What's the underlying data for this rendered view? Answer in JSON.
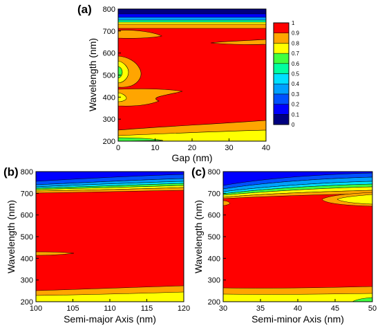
{
  "figure": {
    "colorbar": {
      "levels": [
        0,
        0.1,
        0.2,
        0.3,
        0.4,
        0.5,
        0.6,
        0.7,
        0.8,
        0.9,
        1
      ],
      "tick_labels": [
        "1",
        "0.9",
        "0.8",
        "0.7",
        "0.6",
        "0.5",
        "0.4",
        "0.3",
        "0.2",
        "0.1",
        "0"
      ],
      "colors": [
        "#000080",
        "#0000ff",
        "#0050ff",
        "#00a0ff",
        "#00e0ff",
        "#00ffa0",
        "#40ff40",
        "#ffff00",
        "#ffa500",
        "#ff0000"
      ]
    }
  },
  "chart_data": [
    {
      "type": "heatmap",
      "panel_label": "(a)",
      "xlabel": "Gap (nm)",
      "ylabel": "Wavelength (nm)",
      "xlim": [
        0,
        40
      ],
      "ylim": [
        200,
        800
      ],
      "x_ticks": [
        "0",
        "10",
        "20",
        "30",
        "40"
      ],
      "y_ticks": [
        "200",
        "300",
        "400",
        "500",
        "600",
        "700",
        "800"
      ],
      "bands_uniform_in_x": [
        {
          "wavelength_range": [
            780,
            800
          ],
          "value_range": [
            0,
            0.2
          ]
        },
        {
          "wavelength_range": [
            755,
            780
          ],
          "value_range": [
            0.2,
            0.5
          ]
        },
        {
          "wavelength_range": [
            740,
            755
          ],
          "value_range": [
            0.5,
            0.8
          ]
        },
        {
          "wavelength_range": [
            720,
            740
          ],
          "value_range": [
            0.8,
            0.9
          ]
        },
        {
          "wavelength_range": [
            260,
            720
          ],
          "value_range": [
            0.9,
            1.0
          ]
        },
        {
          "wavelength_range": [
            200,
            260
          ],
          "value_range": [
            0.7,
            0.9
          ]
        }
      ],
      "local_features": [
        {
          "x_range": [
            0,
            12
          ],
          "wavelength_range": [
            660,
            690
          ],
          "value_range": [
            0.8,
            0.9
          ]
        },
        {
          "x_range": [
            0,
            9
          ],
          "wavelength_range": [
            430,
            570
          ],
          "value_range": [
            0.7,
            0.9
          ]
        },
        {
          "x_range": [
            0,
            2
          ],
          "wavelength_range": [
            460,
            530
          ],
          "value_range": [
            0.4,
            0.7
          ]
        },
        {
          "x_range": [
            0,
            18
          ],
          "wavelength_range": [
            360,
            430
          ],
          "value_range": [
            0.8,
            0.9
          ]
        },
        {
          "x_range": [
            0,
            12
          ],
          "wavelength_range": [
            200,
            220
          ],
          "value_range": [
            0.5,
            0.7
          ]
        }
      ]
    },
    {
      "type": "heatmap",
      "panel_label": "(b)",
      "xlabel": "Semi-major Axis (nm)",
      "ylabel": "Wavelength (nm)",
      "xlim": [
        100,
        120
      ],
      "ylim": [
        200,
        800
      ],
      "x_ticks": [
        "100",
        "105",
        "110",
        "115",
        "120"
      ],
      "y_ticks": [
        "200",
        "300",
        "400",
        "500",
        "600",
        "700",
        "800"
      ],
      "bands_uniform_in_x": [
        {
          "wavelength_range": [
            775,
            800
          ],
          "value_range": [
            0,
            0.3
          ]
        },
        {
          "wavelength_range": [
            745,
            775
          ],
          "value_range": [
            0.3,
            0.6
          ]
        },
        {
          "wavelength_range": [
            720,
            745
          ],
          "value_range": [
            0.6,
            0.9
          ]
        },
        {
          "wavelength_range": [
            265,
            720
          ],
          "value_range": [
            0.9,
            1.0
          ]
        },
        {
          "wavelength_range": [
            240,
            265
          ],
          "value_range": [
            0.8,
            0.9
          ]
        },
        {
          "wavelength_range": [
            200,
            240
          ],
          "value_range": [
            0.7,
            0.8
          ]
        }
      ],
      "local_features": [
        {
          "x_range": [
            100,
            104
          ],
          "wavelength_range": [
            415,
            430
          ],
          "value_range": [
            0.8,
            0.9
          ]
        }
      ]
    },
    {
      "type": "heatmap",
      "panel_label": "(c)",
      "xlabel": "Semi-minor Axis (nm)",
      "ylabel": "Wavelength (nm)",
      "xlim": [
        30,
        50
      ],
      "ylim": [
        200,
        800
      ],
      "x_ticks": [
        "30",
        "35",
        "40",
        "45",
        "50"
      ],
      "y_ticks": [
        "200",
        "300",
        "400",
        "500",
        "600",
        "700",
        "800"
      ],
      "bands_uniform_in_x": [
        {
          "wavelength_range": [
            770,
            800
          ],
          "value_range": [
            0,
            0.4
          ]
        },
        {
          "wavelength_range": [
            740,
            770
          ],
          "value_range": [
            0.4,
            0.7
          ]
        },
        {
          "wavelength_range": [
            700,
            740
          ],
          "value_range": [
            0.7,
            0.9
          ]
        },
        {
          "wavelength_range": [
            265,
            700
          ],
          "value_range": [
            0.9,
            1.0
          ]
        },
        {
          "wavelength_range": [
            235,
            265
          ],
          "value_range": [
            0.8,
            0.9
          ]
        },
        {
          "wavelength_range": [
            200,
            235
          ],
          "value_range": [
            0.7,
            0.8
          ]
        }
      ],
      "local_features": [
        {
          "x_range": [
            43,
            50
          ],
          "wavelength_range": [
            650,
            705
          ],
          "value_range": [
            0.7,
            0.9
          ]
        },
        {
          "x_range": [
            30,
            31
          ],
          "wavelength_range": [
            645,
            665
          ],
          "value_range": [
            0.8,
            0.9
          ]
        },
        {
          "x_range": [
            47,
            50
          ],
          "wavelength_range": [
            200,
            215
          ],
          "value_range": [
            0.5,
            0.7
          ]
        }
      ]
    }
  ]
}
